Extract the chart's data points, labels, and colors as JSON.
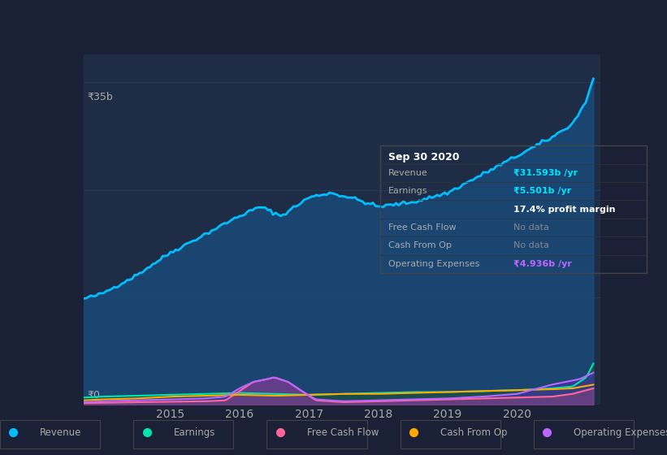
{
  "bg_color": "#1a2035",
  "chart_bg": "#1e2d45",
  "grid_color": "#2a3f5f",
  "text_color": "#aaaaaa",
  "title_color": "#ffffff",
  "y_label": "₹35b",
  "y_zero": "₹0",
  "x_ticks": [
    2015,
    2016,
    2017,
    2018,
    2019,
    2020
  ],
  "ylim": [
    0,
    38
  ],
  "xlim_start": 2013.75,
  "xlim_end": 2021.2,
  "legend": [
    {
      "label": "Revenue",
      "color": "#00bfff"
    },
    {
      "label": "Earnings",
      "color": "#00e5b0"
    },
    {
      "label": "Free Cash Flow",
      "color": "#ff6699"
    },
    {
      "label": "Cash From Op",
      "color": "#ffaa00"
    },
    {
      "label": "Operating Expenses",
      "color": "#bb66ff"
    }
  ],
  "tooltip": {
    "date": "Sep 30 2020",
    "revenue": "₹31.593b /yr",
    "earnings": "₹5.501b /yr",
    "profit_margin": "17.4% profit margin",
    "free_cash_flow": "No data",
    "cash_from_op": "No data",
    "operating_expenses": "₹4.936b /yr"
  },
  "revenue_color": "#00bfff",
  "revenue_fill": "#1a4a7a",
  "earnings_color": "#00e5b0",
  "earnings_fill": "#1a5040",
  "free_cash_flow_color": "#ff6699",
  "cash_from_op_color": "#ffaa00",
  "op_expenses_color": "#bb66ff",
  "op_expenses_fill": "#4433aa"
}
